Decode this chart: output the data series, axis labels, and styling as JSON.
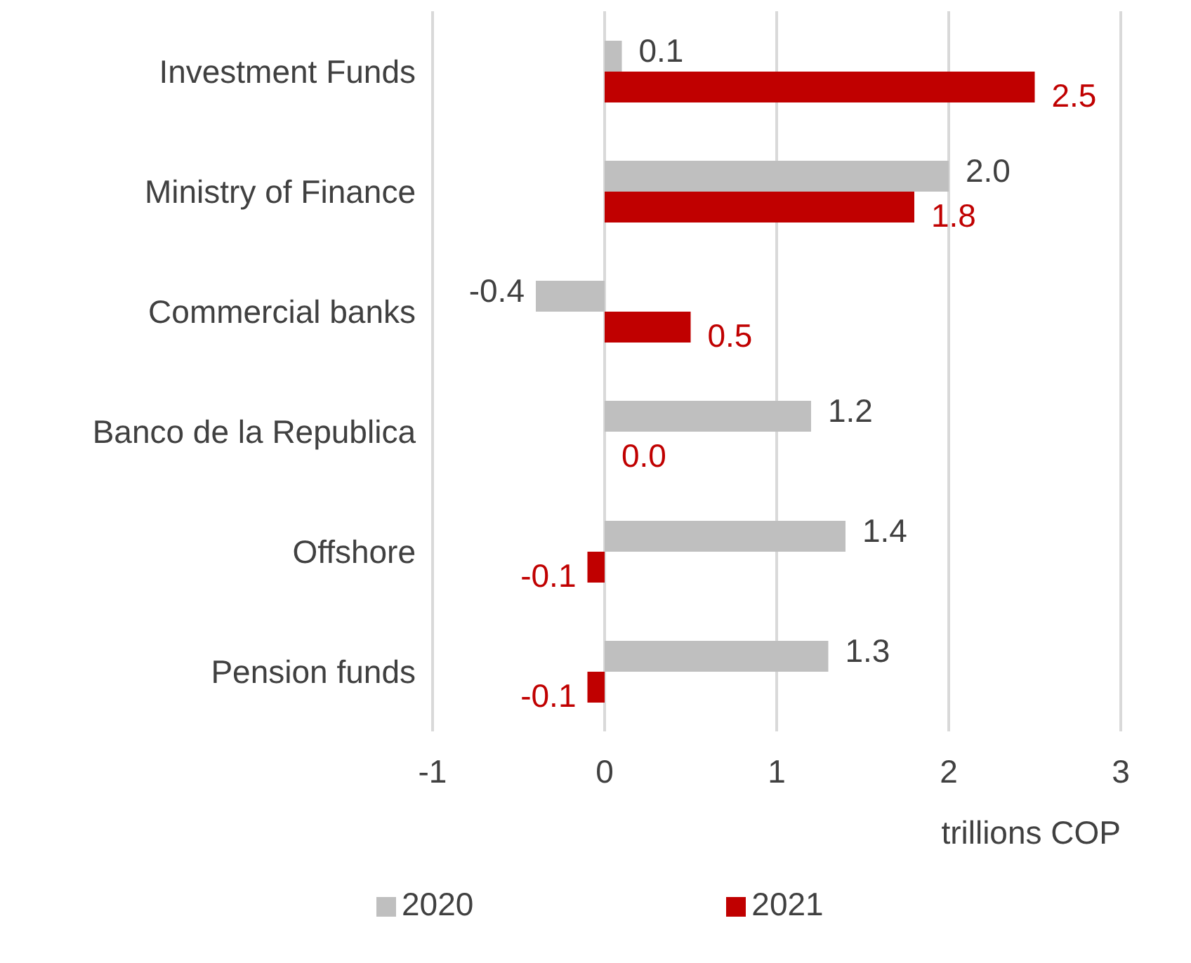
{
  "chart_data": {
    "type": "bar",
    "orientation": "horizontal",
    "categories": [
      "Investment Funds",
      "Ministry of Finance",
      "Commercial banks",
      "Banco de la Republica",
      "Offshore",
      "Pension funds"
    ],
    "series": [
      {
        "name": "2020",
        "color": "#bfbfbf",
        "values": [
          0.1,
          2.0,
          -0.4,
          1.2,
          1.4,
          1.3
        ],
        "value_labels": [
          "0.1",
          "2.0",
          "-0.4",
          "1.2",
          "1.4",
          "1.3"
        ]
      },
      {
        "name": "2021",
        "color": "#c00000",
        "values": [
          2.5,
          1.8,
          0.5,
          0.0,
          -0.1,
          -0.1
        ],
        "value_labels": [
          "2.5",
          "1.8",
          "0.5",
          "0.0",
          "-0.1",
          "-0.1"
        ]
      }
    ],
    "xlim": [
      -1,
      3
    ],
    "xticks": [
      -1,
      0,
      1,
      2,
      3
    ],
    "xlabel": "trillions COP",
    "grid": "x",
    "legend": "bottom"
  }
}
